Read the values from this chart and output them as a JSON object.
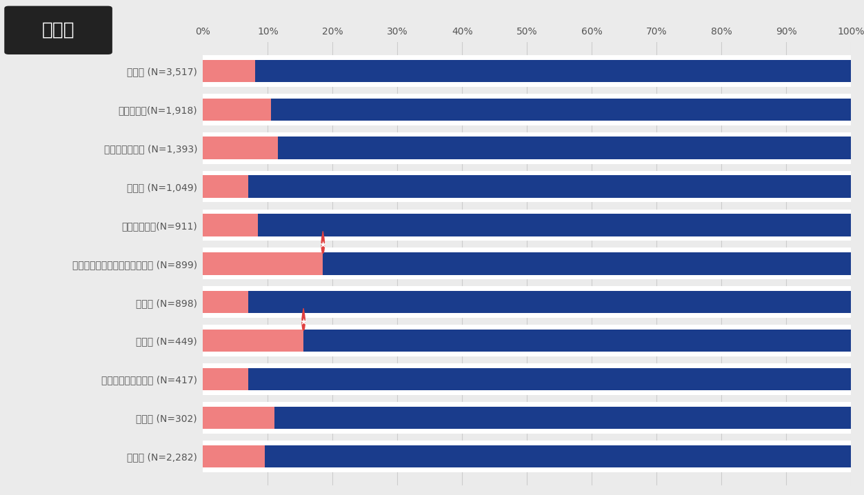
{
  "categories": [
    "製造業 (N=3,517)",
    "サービス業(N=1,918)",
    "卸売り・小売業 (N=1,393)",
    "医療業 (N=1,049)",
    "運送・輸送業(N=911)",
    "ソフトウェア・情報サービス業 (N=899)",
    "建設業 (N=898)",
    "金融業 (N=449)",
    "組合・教育・公務員 (N=417)",
    "不動産 (N=302)",
    "その他 (N=2,282)"
  ],
  "pink_values": [
    8.0,
    10.5,
    11.5,
    7.0,
    8.5,
    18.5,
    7.0,
    15.5,
    7.0,
    11.0,
    9.5
  ],
  "pink_color": "#F08080",
  "blue_color": "#1A3C8C",
  "bg_color": "#EBEBEB",
  "bar_bg_color": "#FFFFFF",
  "title_box_color": "#222222",
  "title_text": "業種別",
  "title_text_color": "#FFFFFF",
  "star_rows": [
    5,
    7
  ],
  "bar_height": 0.58,
  "figsize": [
    12.53,
    7.18
  ],
  "dpi": 100
}
